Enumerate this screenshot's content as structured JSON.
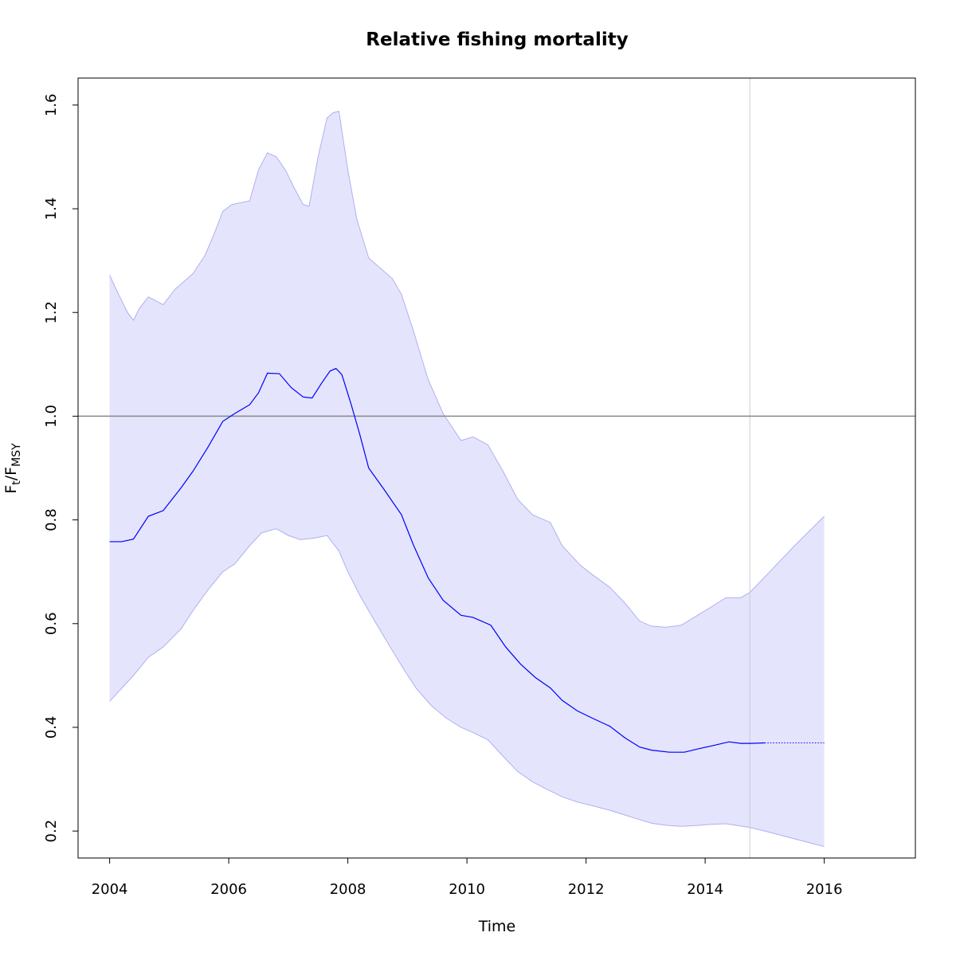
{
  "chart_data": {
    "type": "line",
    "title": "Relative fishing mortality",
    "xlabel": "Time",
    "ylabel": {
      "main": "F",
      "sub1": "t",
      "sep": "/F",
      "sub2": "MSY"
    },
    "xlim": [
      2003.47,
      2017.53
    ],
    "ylim": [
      0.148,
      1.652
    ],
    "xticks": [
      2004,
      2006,
      2008,
      2010,
      2012,
      2014,
      2016
    ],
    "yticks": [
      0.2,
      0.4,
      0.6,
      0.8,
      1.0,
      1.2,
      1.4,
      1.6
    ],
    "ytick_labels": [
      "0.2",
      "0.4",
      "0.6",
      "0.8",
      "1.0",
      "1.2",
      "1.4",
      "1.6"
    ],
    "reference_line_y": 1.0,
    "data_end_x": 2014.75,
    "grid": false,
    "series": [
      {
        "role": "estimate",
        "color": "#0000ff",
        "x": [
          2004.0,
          2004.2,
          2004.4,
          2004.65,
          2004.9,
          2005.2,
          2005.4,
          2005.65,
          2005.9,
          2006.1,
          2006.35,
          2006.5,
          2006.65,
          2006.85,
          2007.05,
          2007.25,
          2007.4,
          2007.55,
          2007.7,
          2007.8,
          2007.9,
          2008.05,
          2008.2,
          2008.35,
          2008.6,
          2008.9,
          2009.1,
          2009.35,
          2009.6,
          2009.9,
          2010.1,
          2010.4,
          2010.65,
          2010.9,
          2011.15,
          2011.4,
          2011.6,
          2011.85,
          2012.1,
          2012.4,
          2012.65,
          2012.9,
          2013.1,
          2013.4,
          2013.65,
          2013.9,
          2014.1,
          2014.4,
          2014.6,
          2014.75,
          2015.0
        ],
        "y": [
          0.758,
          0.758,
          0.763,
          0.807,
          0.818,
          0.862,
          0.894,
          0.94,
          0.99,
          1.005,
          1.022,
          1.045,
          1.083,
          1.082,
          1.055,
          1.037,
          1.035,
          1.062,
          1.087,
          1.092,
          1.08,
          1.025,
          0.965,
          0.9,
          0.86,
          0.81,
          0.752,
          0.688,
          0.645,
          0.616,
          0.612,
          0.597,
          0.555,
          0.522,
          0.496,
          0.476,
          0.452,
          0.432,
          0.418,
          0.402,
          0.38,
          0.362,
          0.356,
          0.352,
          0.352,
          0.359,
          0.364,
          0.372,
          0.369,
          0.369,
          0.37
        ]
      },
      {
        "role": "forecast",
        "color": "#0000ff",
        "style": "dotted",
        "x": [
          2015.0,
          2016.0
        ],
        "y": [
          0.37,
          0.37
        ]
      },
      {
        "role": "lower-bound",
        "color": "#b0b0f0",
        "x": [
          2004.0,
          2004.2,
          2004.4,
          2004.65,
          2004.9,
          2005.2,
          2005.4,
          2005.65,
          2005.9,
          2006.1,
          2006.35,
          2006.55,
          2006.8,
          2007.0,
          2007.2,
          2007.45,
          2007.65,
          2007.85,
          2008.0,
          2008.2,
          2008.45,
          2008.7,
          2008.95,
          2009.15,
          2009.4,
          2009.65,
          2009.9,
          2010.1,
          2010.35,
          2010.6,
          2010.85,
          2011.1,
          2011.35,
          2011.6,
          2011.85,
          2012.1,
          2012.4,
          2012.65,
          2012.9,
          2013.1,
          2013.35,
          2013.6,
          2013.9,
          2014.1,
          2014.35,
          2014.75,
          2015.0,
          2015.5,
          2016.0
        ],
        "y": [
          0.45,
          0.475,
          0.5,
          0.535,
          0.555,
          0.59,
          0.625,
          0.665,
          0.7,
          0.715,
          0.75,
          0.775,
          0.783,
          0.77,
          0.762,
          0.765,
          0.77,
          0.74,
          0.7,
          0.655,
          0.605,
          0.557,
          0.51,
          0.475,
          0.442,
          0.418,
          0.4,
          0.39,
          0.376,
          0.345,
          0.315,
          0.295,
          0.28,
          0.266,
          0.256,
          0.249,
          0.24,
          0.231,
          0.222,
          0.215,
          0.211,
          0.209,
          0.211,
          0.213,
          0.214,
          0.207,
          0.2,
          0.185,
          0.17
        ]
      },
      {
        "role": "upper-bound",
        "color": "#b0b0f0",
        "x": [
          2004.0,
          2004.15,
          2004.3,
          2004.4,
          2004.5,
          2004.65,
          2004.9,
          2005.1,
          2005.4,
          2005.6,
          2005.75,
          2005.9,
          2006.05,
          2006.25,
          2006.35,
          2006.5,
          2006.65,
          2006.8,
          2006.95,
          2007.1,
          2007.25,
          2007.35,
          2007.5,
          2007.65,
          2007.75,
          2007.85,
          2008.0,
          2008.15,
          2008.35,
          2008.55,
          2008.75,
          2008.9,
          2009.1,
          2009.35,
          2009.6,
          2009.9,
          2010.1,
          2010.35,
          2010.6,
          2010.85,
          2011.1,
          2011.4,
          2011.6,
          2011.9,
          2012.1,
          2012.4,
          2012.65,
          2012.9,
          2013.1,
          2013.35,
          2013.6,
          2013.9,
          2014.1,
          2014.35,
          2014.6,
          2014.75,
          2015.0,
          2015.5,
          2016.0
        ],
        "y": [
          1.272,
          1.235,
          1.2,
          1.185,
          1.208,
          1.23,
          1.215,
          1.245,
          1.275,
          1.31,
          1.35,
          1.395,
          1.408,
          1.413,
          1.415,
          1.475,
          1.508,
          1.5,
          1.475,
          1.44,
          1.408,
          1.405,
          1.5,
          1.575,
          1.585,
          1.588,
          1.475,
          1.38,
          1.305,
          1.285,
          1.265,
          1.235,
          1.165,
          1.07,
          1.005,
          0.953,
          0.96,
          0.945,
          0.895,
          0.84,
          0.81,
          0.795,
          0.75,
          0.713,
          0.695,
          0.67,
          0.64,
          0.605,
          0.595,
          0.593,
          0.597,
          0.618,
          0.632,
          0.65,
          0.65,
          0.66,
          0.69,
          0.75,
          0.807
        ]
      }
    ]
  }
}
